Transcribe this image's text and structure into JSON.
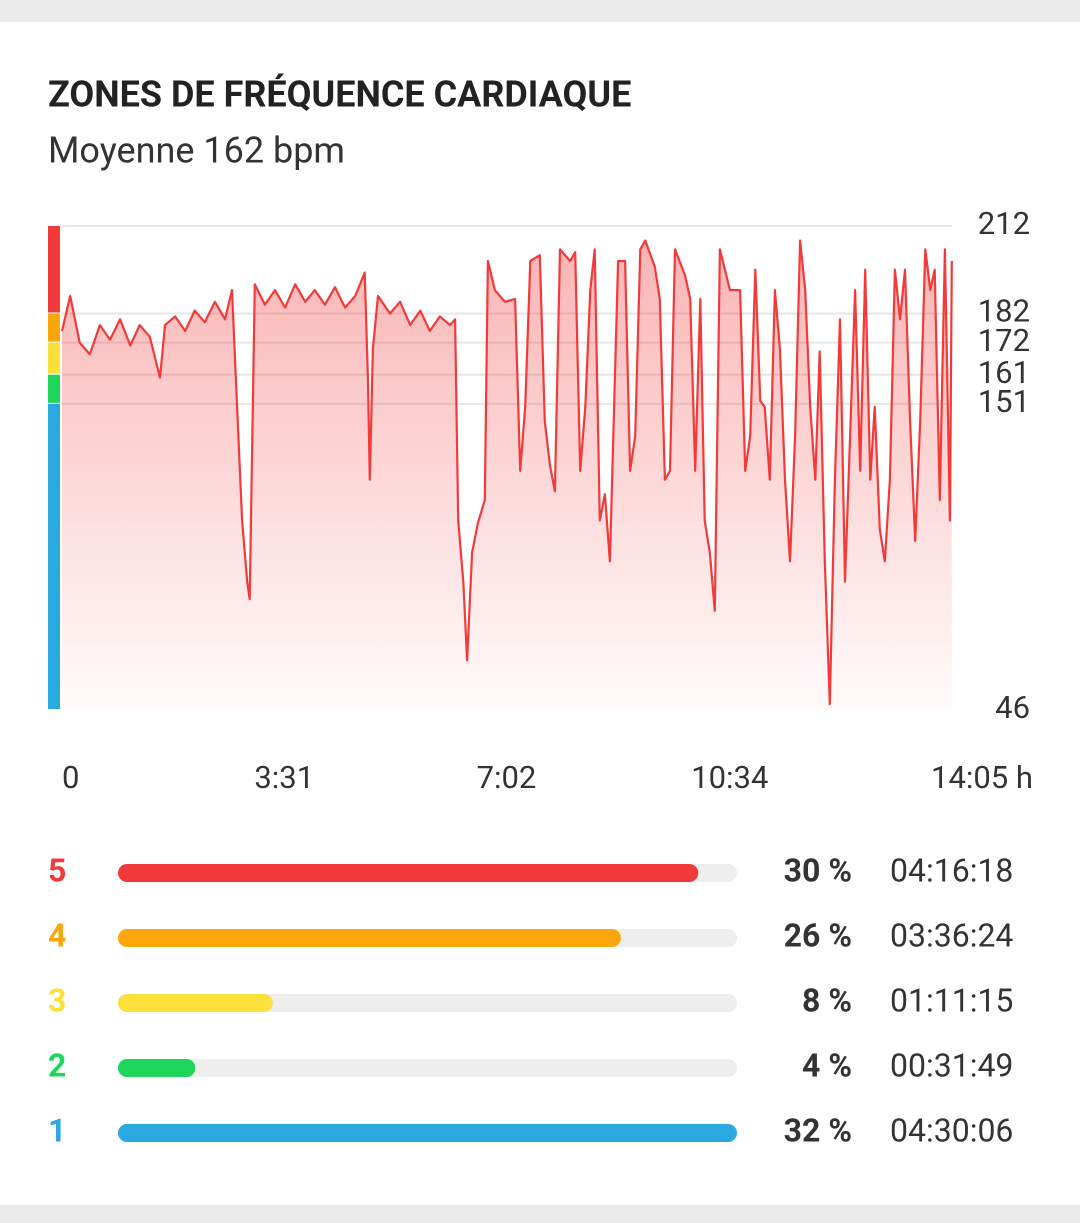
{
  "chart_data": [
    {
      "type": "line",
      "title": "ZONES DE FRÉQUENCE CARDIAQUE",
      "subtitle": "Moyenne 162 bpm",
      "color": "#f23a3a",
      "x": [
        0,
        0.13,
        0.28,
        0.44,
        0.6,
        0.76,
        0.92,
        1.08,
        1.23,
        1.39,
        1.55,
        1.63,
        1.79,
        1.95,
        2.1,
        2.26,
        2.42,
        2.58,
        2.69,
        2.77,
        2.85,
        2.93,
        2.97,
        3.05,
        3.21,
        3.37,
        3.53,
        3.69,
        3.85,
        4.0,
        4.16,
        4.32,
        4.48,
        4.64,
        4.79,
        4.84,
        4.87,
        4.92,
        5.0,
        5.19,
        5.35,
        5.51,
        5.67,
        5.82,
        5.98,
        6.14,
        6.22,
        6.27,
        6.35,
        6.41,
        6.49,
        6.58,
        6.69,
        6.74,
        6.85,
        7.01,
        7.17,
        7.25,
        7.33,
        7.41,
        7.56,
        7.64,
        7.72,
        7.8,
        7.88,
        8.04,
        8.12,
        8.2,
        8.28,
        8.36,
        8.43,
        8.51,
        8.59,
        8.67,
        8.8,
        8.91,
        8.99,
        9.07,
        9.15,
        9.23,
        9.38,
        9.46,
        9.54,
        9.62,
        9.7,
        9.86,
        9.94,
        10.02,
        10.1,
        10.17,
        10.25,
        10.33,
        10.41,
        10.57,
        10.73,
        10.81,
        10.89,
        10.97,
        11.05,
        11.12,
        11.2,
        11.28,
        11.36,
        11.44,
        11.52,
        11.6,
        11.68,
        11.76,
        11.84,
        11.92,
        11.99,
        12.07,
        12.15,
        12.23,
        12.31,
        12.39,
        12.47,
        12.55,
        12.63,
        12.71,
        12.79,
        12.86,
        12.94,
        13.02,
        13.1,
        13.18,
        13.26,
        13.34,
        13.42,
        13.5,
        13.58,
        13.66,
        13.74,
        13.81,
        13.89,
        13.97,
        14.05,
        14.08
      ],
      "values": [
        176,
        188,
        172,
        168,
        178,
        173,
        180,
        171,
        178,
        174,
        160,
        178,
        181,
        176,
        183,
        179,
        186,
        180,
        190,
        150,
        111,
        90,
        84,
        192,
        185,
        190,
        184,
        192,
        186,
        190,
        185,
        191,
        184,
        188,
        196,
        160,
        125,
        170,
        188,
        182,
        186,
        178,
        183,
        176,
        181,
        178,
        180,
        111,
        90,
        63,
        100,
        110,
        118,
        200,
        190,
        186,
        187,
        128,
        150,
        200,
        202,
        145,
        130,
        121,
        204,
        200,
        203,
        128,
        150,
        190,
        204,
        111,
        120,
        97,
        200,
        200,
        128,
        140,
        204,
        207,
        198,
        187,
        125,
        128,
        204,
        195,
        187,
        128,
        187,
        111,
        100,
        80,
        204,
        190,
        190,
        128,
        140,
        197,
        152,
        150,
        125,
        190,
        170,
        125,
        97,
        140,
        207,
        190,
        150,
        125,
        169,
        97,
        48,
        125,
        180,
        90,
        140,
        190,
        128,
        197,
        125,
        150,
        108,
        97,
        125,
        197,
        180,
        197,
        145,
        104,
        145,
        204,
        190,
        197,
        118,
        204,
        111,
        200
      ],
      "xlim": [
        0,
        14.083
      ],
      "xticks": [
        0,
        {
          "value": 3.517,
          "label": "3:31"
        },
        {
          "value": 7.033,
          "label": "7:02"
        },
        {
          "value": 10.567,
          "label": "10:34"
        },
        {
          "value": 14.083,
          "label": "14:05 h"
        }
      ],
      "ylim": [
        46,
        212
      ],
      "yticks": [
        46,
        151,
        161,
        172,
        182,
        212
      ],
      "grid": true
    },
    {
      "type": "hbar",
      "categories": [
        "5",
        "4",
        "3",
        "2",
        "1"
      ],
      "values": [
        30,
        26,
        8,
        4,
        32
      ],
      "value_labels": [
        "30 %",
        "26 %",
        "8 %",
        "4 %",
        "32 %"
      ],
      "durations": [
        "04:16:18",
        "03:36:24",
        "01:11:15",
        "00:31:49",
        "04:30:06"
      ],
      "colors": [
        "#f23a3a",
        "#fca60a",
        "#fde03a",
        "#1ed65a",
        "#2aa8e0"
      ]
    }
  ]
}
